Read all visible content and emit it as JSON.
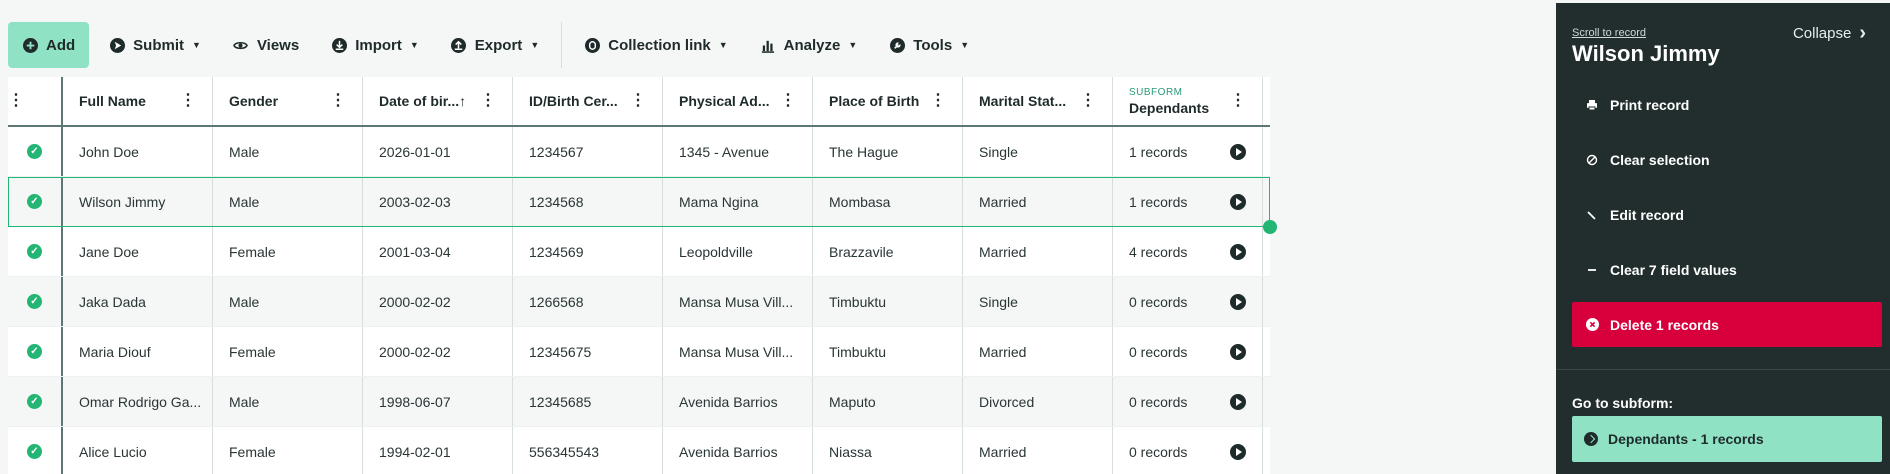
{
  "toolbar": {
    "add": "Add",
    "submit": "Submit",
    "views": "Views",
    "import": "Import",
    "export": "Export",
    "collection_link": "Collection link",
    "analyze": "Analyze",
    "tools": "Tools"
  },
  "table": {
    "headers": [
      "Full Name",
      "Gender",
      "Date of bir...↑",
      "ID/Birth Cer...",
      "Physical Ad...",
      "Place of Birth",
      "Marital Stat...",
      "Dependants"
    ],
    "subform_label": "SUBFORM",
    "rows": [
      [
        "John Doe",
        "Male",
        "2026-01-01",
        "1234567",
        "1345 - Avenue",
        "The Hague",
        "Single",
        "1 records"
      ],
      [
        "Wilson Jimmy",
        "Male",
        "2003-02-03",
        "1234568",
        "Mama Ngina",
        "Mombasa",
        "Married",
        "1 records"
      ],
      [
        "Jane Doe",
        "Female",
        "2001-03-04",
        "1234569",
        "Leopoldville",
        "Brazzavile",
        "Married",
        "4 records"
      ],
      [
        "Jaka Dada",
        "Male",
        "2000-02-02",
        "1266568",
        "Mansa Musa Vill...",
        "Timbuktu",
        "Single",
        "0 records"
      ],
      [
        "Maria Diouf",
        "Female",
        "2000-02-02",
        "12345675",
        "Mansa Musa Vill...",
        "Timbuktu",
        "Married",
        "0 records"
      ],
      [
        "Omar Rodrigo Ga...",
        "Male",
        "1998-06-07",
        "12345685",
        "Avenida Barrios",
        "Maputo",
        "Divorced",
        "0 records"
      ],
      [
        "Alice Lucio",
        "Female",
        "1994-02-01",
        "556345543",
        "Avenida Barrios",
        "Niassa",
        "Married",
        "0 records"
      ]
    ]
  },
  "panel": {
    "scroll_link": "Scroll to record",
    "collapse": "Collapse",
    "title": "Wilson Jimmy",
    "print": "Print record",
    "clear_selection": "Clear selection",
    "edit": "Edit record",
    "clear_fields": "Clear 7 field values",
    "delete": "Delete 1 records",
    "goto_label": "Go to subform:",
    "goto_button": "Dependants - 1 records"
  },
  "colors": {
    "accent": "#8fe3c4",
    "success": "#22b573",
    "danger": "#d8003c",
    "panel_bg": "#222d2d"
  }
}
